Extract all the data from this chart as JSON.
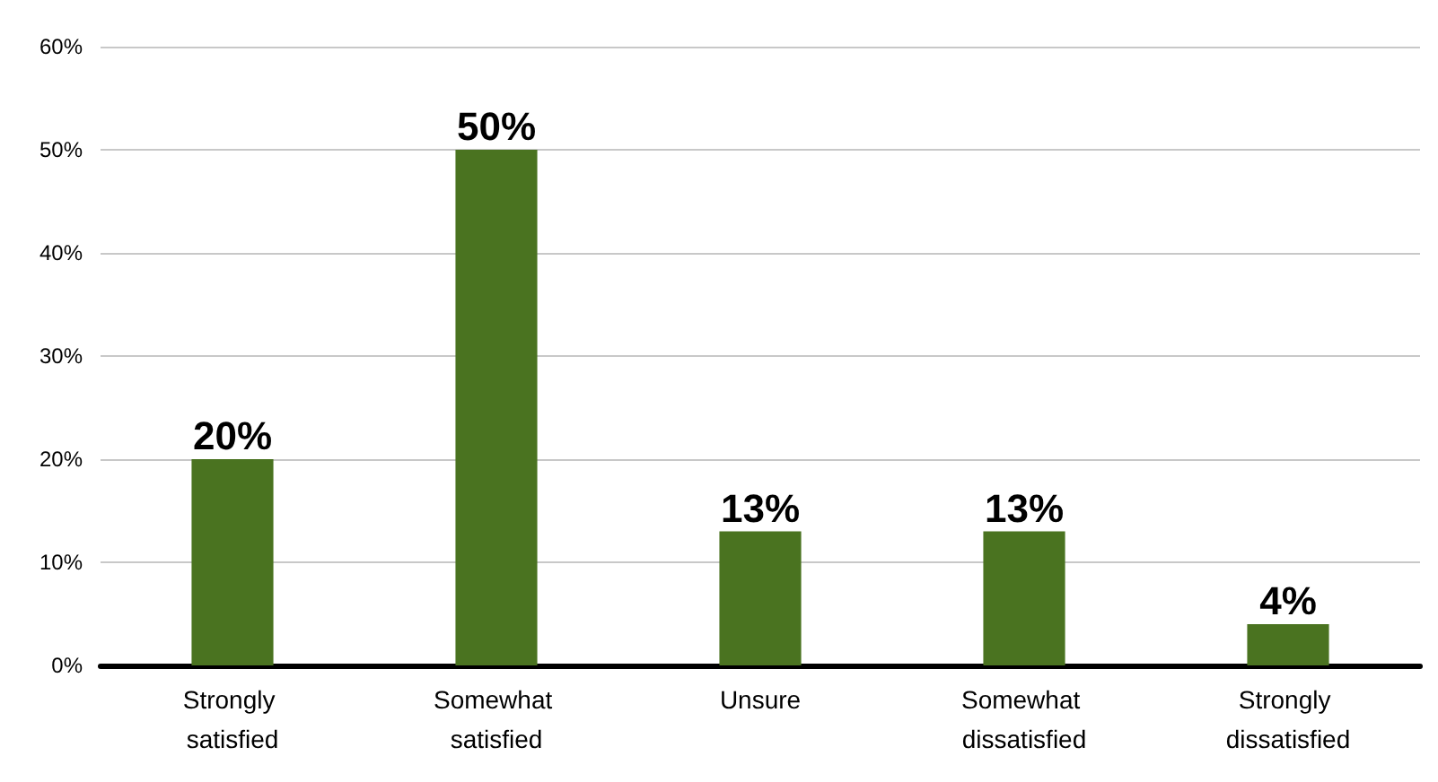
{
  "chart_data": {
    "type": "bar",
    "categories": [
      "Strongly satisfied",
      "Somewhat satisfied",
      "Unsure",
      "Somewhat dissatisfied",
      "Strongly dissatisfied"
    ],
    "values": [
      20,
      50,
      13,
      13,
      4
    ],
    "value_labels": [
      "20%",
      "50%",
      "13%",
      "13%",
      "4%"
    ],
    "color": "#4a7320",
    "ylim": [
      0,
      60
    ],
    "yticks": [
      {
        "value": 0,
        "label": "0%"
      },
      {
        "value": 10,
        "label": "10%"
      },
      {
        "value": 20,
        "label": "20%"
      },
      {
        "value": 30,
        "label": "30%"
      },
      {
        "value": 40,
        "label": "40%"
      },
      {
        "value": 50,
        "label": "50%"
      },
      {
        "value": 60,
        "label": "60%"
      }
    ],
    "grid": "y"
  }
}
